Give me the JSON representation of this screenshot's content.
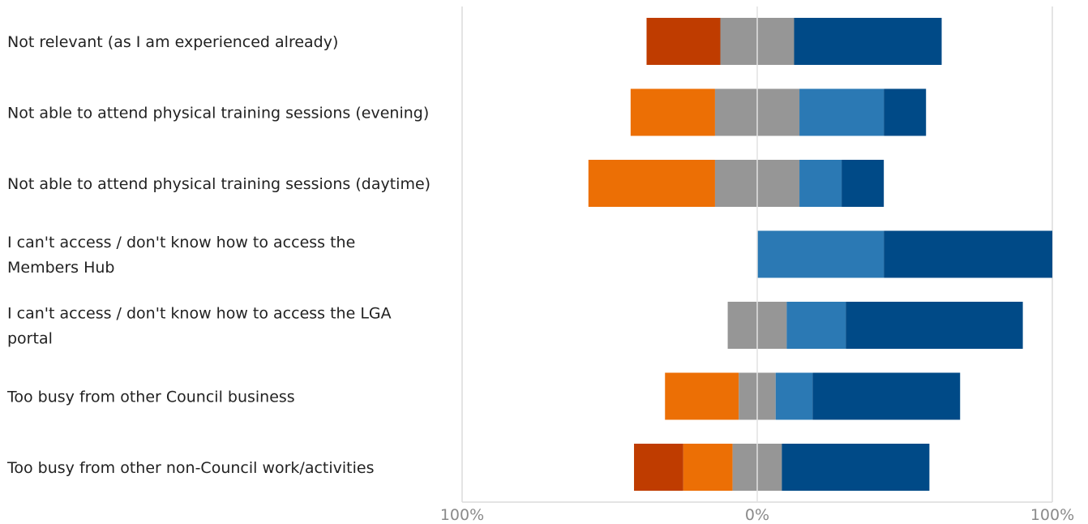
{
  "chart_data": {
    "type": "bar",
    "orientation": "horizontal",
    "stacked": "diverging",
    "title": "",
    "xlabel": "",
    "ylabel": "",
    "xlim": [
      -100,
      100
    ],
    "x_tick_labels": [
      "100%",
      "0%",
      "100%"
    ],
    "grid": false,
    "legend": "none",
    "categories": [
      [
        "Not relevant (as I am experienced already)"
      ],
      [
        "Not able to attend physical training sessions (evening)"
      ],
      [
        "Not able to attend physical training sessions (daytime)"
      ],
      [
        "I can't access / don't know how to access the",
        "Members Hub"
      ],
      [
        "I can't access / don't know how to access the LGA",
        "portal"
      ],
      [
        "Too busy from other Council business"
      ],
      [
        "Too busy from other non-Council work/activities"
      ]
    ],
    "series": [
      {
        "color": "#bf3c00",
        "values": [
          25,
          0,
          0,
          0,
          0,
          0,
          16.7
        ]
      },
      {
        "color": "#ec6f05",
        "values": [
          0,
          28.6,
          42.9,
          0,
          0,
          25,
          16.7
        ]
      },
      {
        "color": "#969696",
        "values": [
          25,
          28.6,
          28.6,
          0,
          20,
          12.5,
          16.7
        ]
      },
      {
        "color": "#2b79b4",
        "values": [
          0,
          28.6,
          14.3,
          42.9,
          20,
          12.5,
          0
        ]
      },
      {
        "color": "#004a87",
        "values": [
          50,
          14.3,
          14.3,
          57.1,
          60,
          50,
          50
        ]
      }
    ]
  }
}
